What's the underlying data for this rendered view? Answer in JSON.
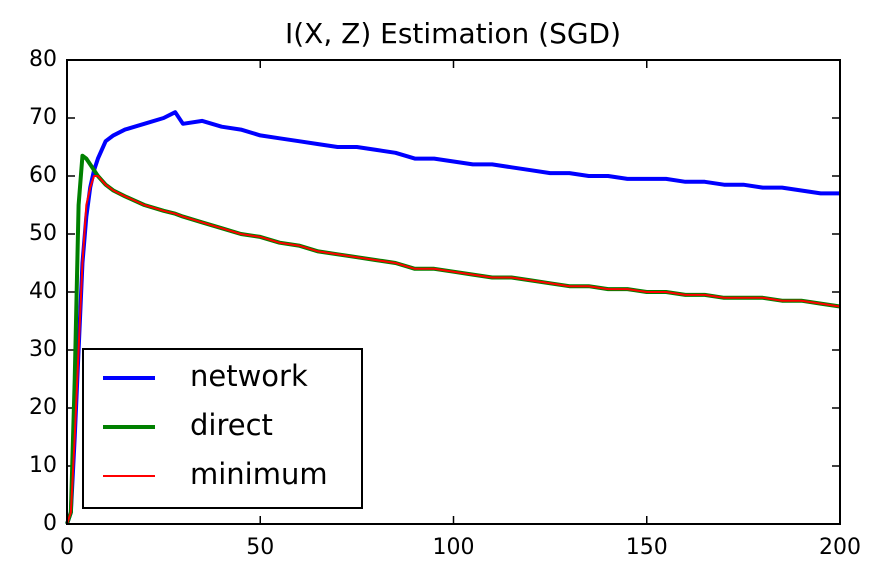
{
  "chart_data": {
    "type": "line",
    "title": "I(X, Z) Estimation (SGD)",
    "x": [
      0,
      1,
      2,
      3,
      4,
      5,
      6,
      7,
      8,
      10,
      12,
      15,
      20,
      25,
      28,
      30,
      35,
      40,
      45,
      50,
      55,
      60,
      65,
      70,
      75,
      80,
      85,
      90,
      95,
      100,
      105,
      110,
      115,
      120,
      125,
      130,
      135,
      140,
      145,
      150,
      155,
      160,
      165,
      170,
      175,
      180,
      185,
      190,
      195,
      200
    ],
    "series": [
      {
        "name": "network",
        "color": "#0000ff",
        "width": 4,
        "values": [
          0,
          2,
          15,
          30,
          45,
          53,
          58,
          61,
          63,
          66,
          67,
          68,
          69,
          70,
          71,
          69,
          69.5,
          68.5,
          68,
          67,
          66.5,
          66,
          65.5,
          65,
          65,
          64.5,
          64,
          63,
          63,
          62.5,
          62,
          62,
          61.5,
          61,
          60.5,
          60.5,
          60,
          60,
          59.5,
          59.5,
          59.5,
          59,
          59,
          58.5,
          58.5,
          58,
          58,
          57.5,
          57,
          57
        ]
      },
      {
        "name": "direct",
        "color": "#008000",
        "width": 4,
        "values": [
          0,
          2,
          25,
          55,
          63.5,
          63,
          62,
          61,
          60,
          58.5,
          57.5,
          56.5,
          55,
          54,
          53.5,
          53,
          52,
          51,
          50,
          49.5,
          48.5,
          48,
          47,
          46.5,
          46,
          45.5,
          45,
          44,
          44,
          43.5,
          43,
          42.5,
          42.5,
          42,
          41.5,
          41,
          41,
          40.5,
          40.5,
          40,
          40,
          39.5,
          39.5,
          39,
          39,
          39,
          38.5,
          38.5,
          38,
          37.5
        ]
      },
      {
        "name": "minimum",
        "color": "#ff0000",
        "width": 2,
        "values": [
          0,
          2,
          15,
          30,
          45,
          55,
          58,
          60,
          60,
          58.5,
          57.5,
          56.5,
          55,
          54,
          53.5,
          53,
          52,
          51,
          50,
          49.5,
          48.5,
          48,
          47,
          46.5,
          46,
          45.5,
          45,
          44,
          44,
          43.5,
          43,
          42.5,
          42.5,
          42,
          41.5,
          41,
          41,
          40.5,
          40.5,
          40,
          40,
          39.5,
          39.5,
          39,
          39,
          39,
          38.5,
          38.5,
          38,
          37.5
        ]
      }
    ],
    "xlim": [
      0,
      200
    ],
    "xticks": [
      0,
      50,
      100,
      150,
      200
    ],
    "ylim": [
      0,
      80
    ],
    "yticks": [
      0,
      10,
      20,
      30,
      40,
      50,
      60,
      70,
      80
    ],
    "legend": "lower left"
  }
}
